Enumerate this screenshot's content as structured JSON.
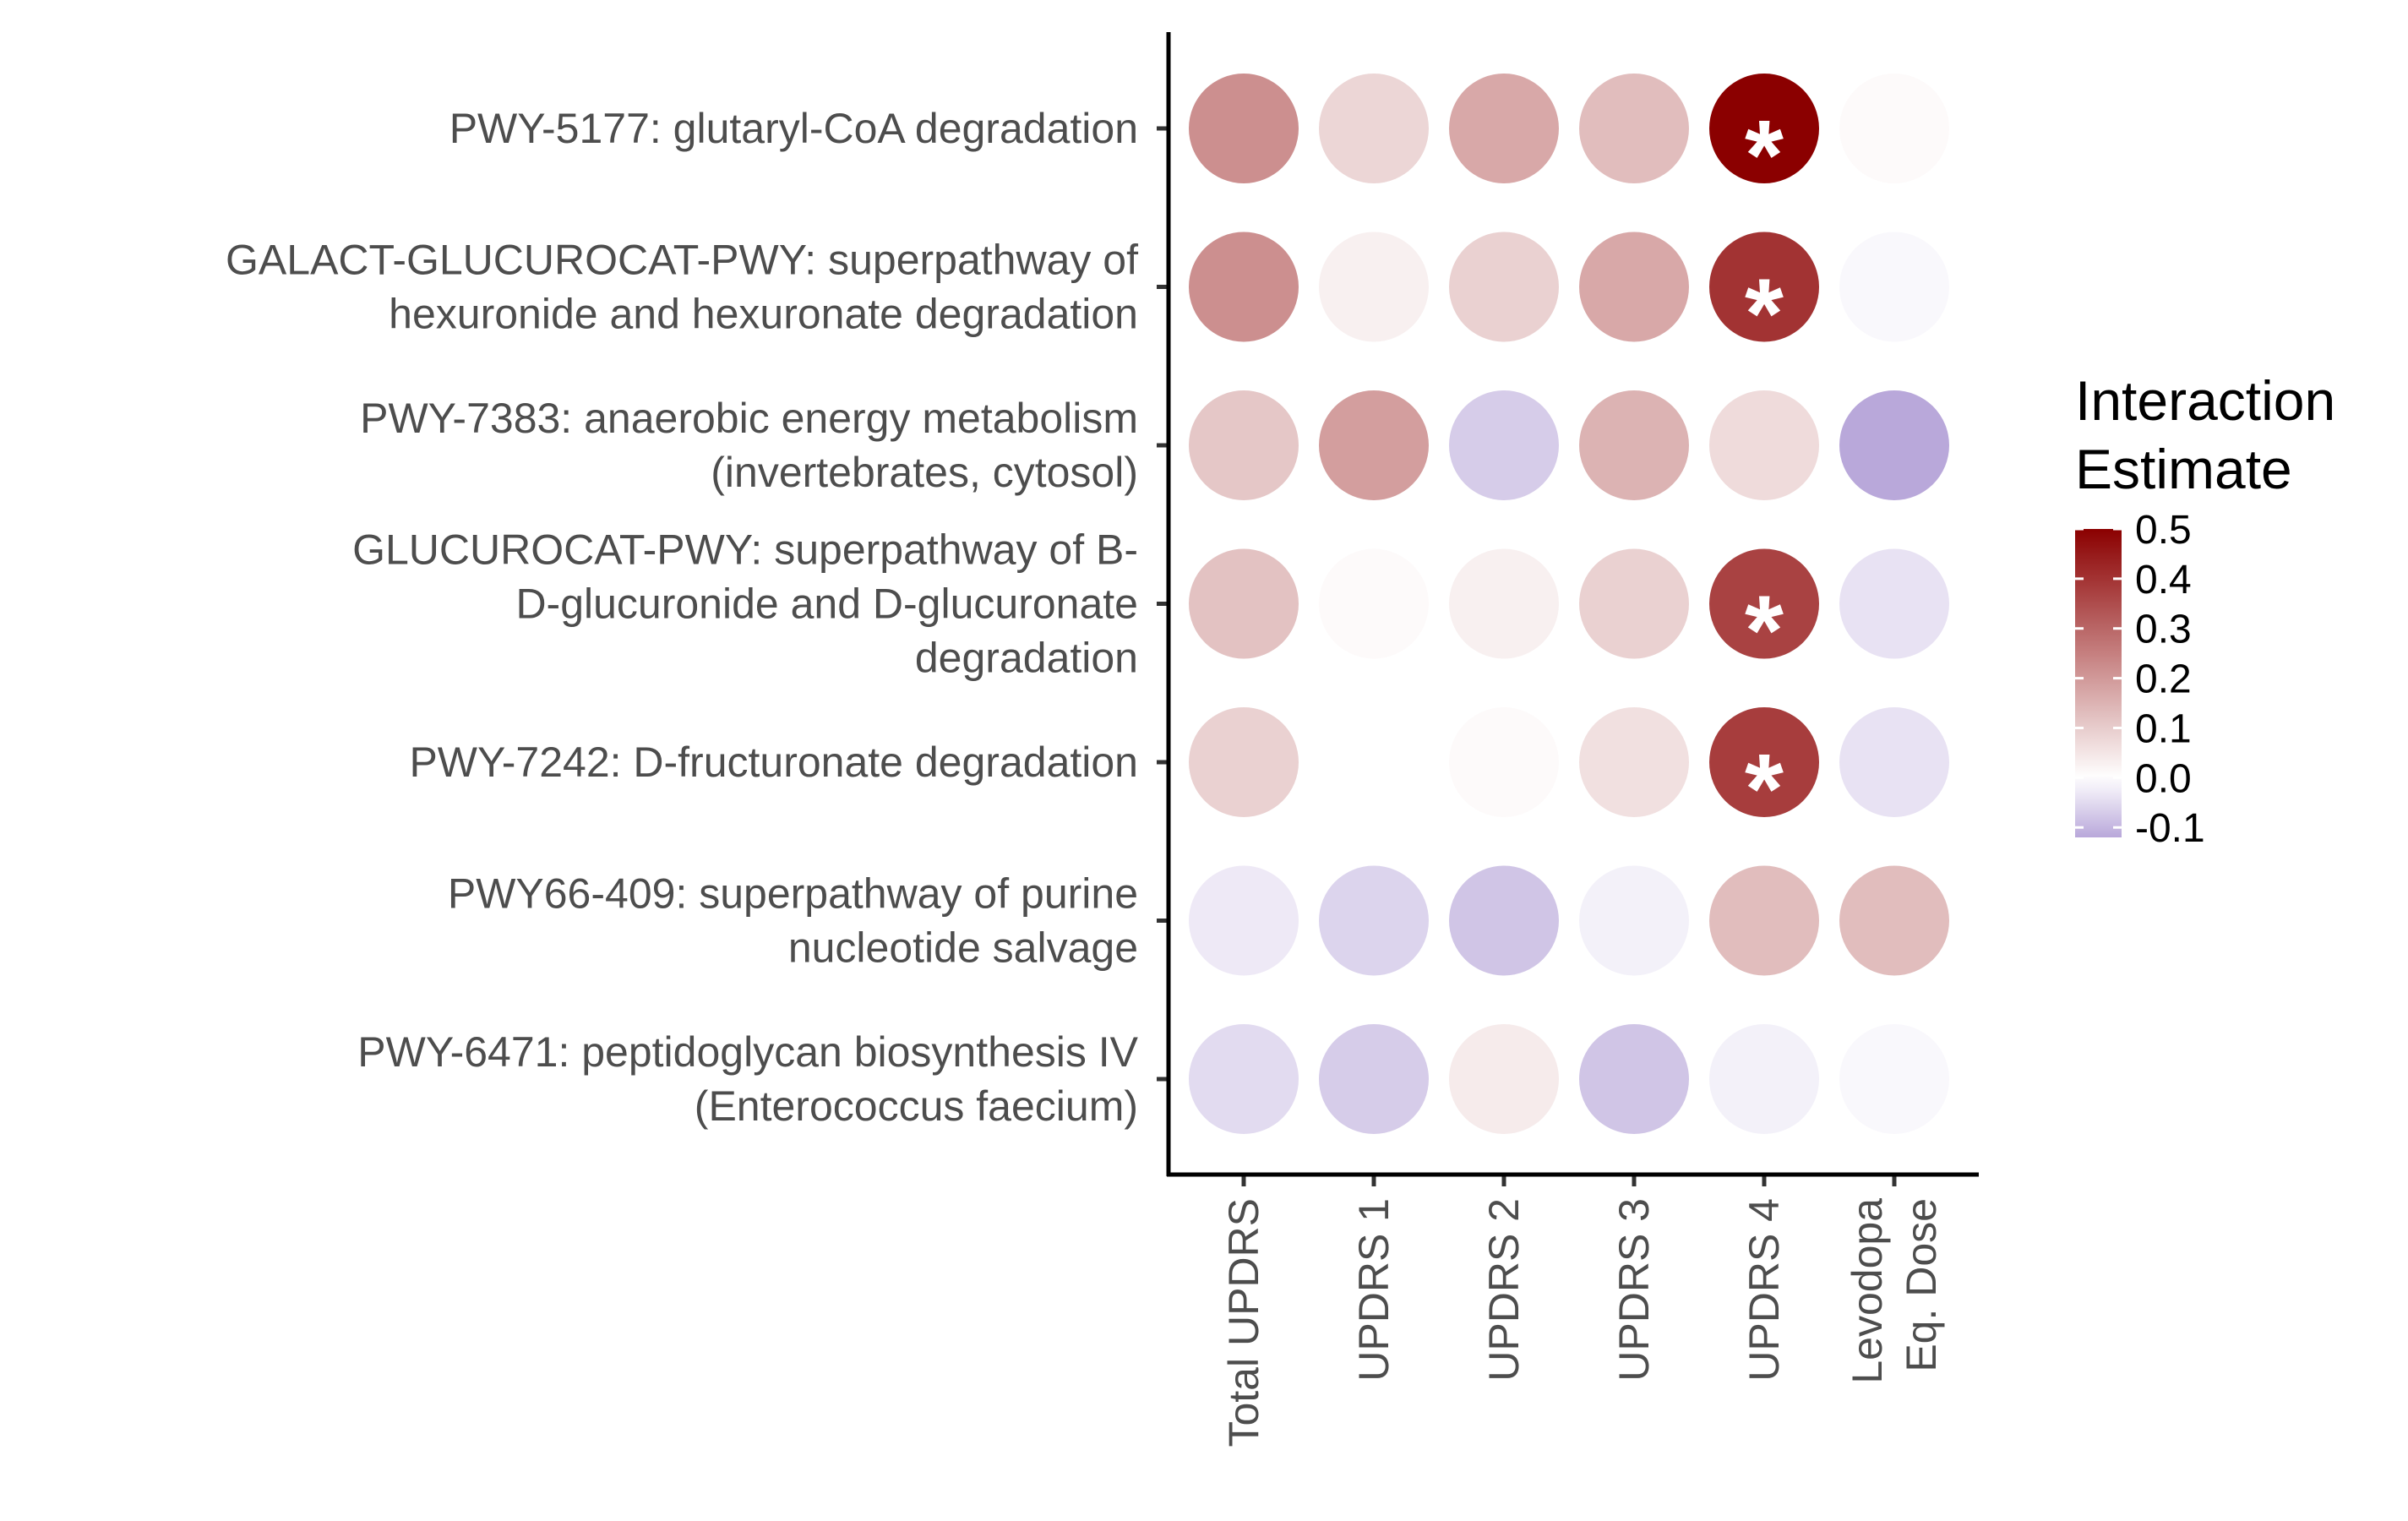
{
  "chart_data": {
    "type": "heatmap",
    "subtype": "bubble-grid",
    "rows": [
      [
        "PWY-5177: glutaryl-CoA degradation"
      ],
      [
        "GALACT-GLUCUROCAT-PWY: superpathway of",
        "hexuronide and hexuronate degradation"
      ],
      [
        "PWY-7383: anaerobic energy metabolism",
        "(invertebrates, cytosol)"
      ],
      [
        "GLUCUROCAT-PWY: superpathway of B-",
        "D-glucuronide and D-glucuronate",
        "degradation"
      ],
      [
        "PWY-7242: D-fructuronate degradation"
      ],
      [
        "PWY66-409: superpathway of purine",
        "nucleotide salvage"
      ],
      [
        "PWY-6471: peptidoglycan biosynthesis IV",
        "(Enterococcus faecium)"
      ]
    ],
    "columns": [
      [
        "Total UPDRS"
      ],
      [
        "UPDRS 1"
      ],
      [
        "UPDRS 2"
      ],
      [
        "UPDRS 3"
      ],
      [
        "UPDRS 4"
      ],
      [
        "Levodopa",
        "Eq. Dose"
      ]
    ],
    "values": [
      [
        0.22,
        0.08,
        0.17,
        0.13,
        0.5,
        0.01
      ],
      [
        0.22,
        0.03,
        0.09,
        0.17,
        0.4,
        -0.01
      ],
      [
        0.11,
        0.19,
        -0.07,
        0.15,
        0.07,
        -0.12
      ],
      [
        0.12,
        0.01,
        0.03,
        0.09,
        0.37,
        -0.04
      ],
      [
        0.09,
        0.0,
        0.01,
        0.06,
        0.38,
        -0.04
      ],
      [
        -0.03,
        -0.06,
        -0.08,
        -0.02,
        0.13,
        0.13
      ],
      [
        -0.05,
        -0.07,
        0.04,
        -0.08,
        -0.02,
        -0.01
      ]
    ],
    "significant": [
      [
        false,
        false,
        false,
        false,
        true,
        false
      ],
      [
        false,
        false,
        false,
        false,
        true,
        false
      ],
      [
        false,
        false,
        false,
        false,
        false,
        false
      ],
      [
        false,
        false,
        false,
        false,
        true,
        false
      ],
      [
        false,
        false,
        false,
        false,
        true,
        false
      ],
      [
        false,
        false,
        false,
        false,
        false,
        false
      ],
      [
        false,
        false,
        false,
        false,
        false,
        false
      ]
    ],
    "significance_marker": "*",
    "legend": {
      "title": [
        "Interaction",
        "Estimate"
      ],
      "ticks": [
        0.5,
        0.4,
        0.3,
        0.2,
        0.1,
        0.0,
        -0.1
      ],
      "tick_labels": [
        "0.5",
        "0.4",
        "0.3",
        "0.2",
        "0.1",
        "0.0",
        "-0.1"
      ],
      "range": [
        -0.12,
        0.5
      ],
      "placement": "right"
    },
    "colors": {
      "high": "#8b0000",
      "mid": "#ffffff",
      "low": "#b9a8da"
    },
    "grid": false
  }
}
